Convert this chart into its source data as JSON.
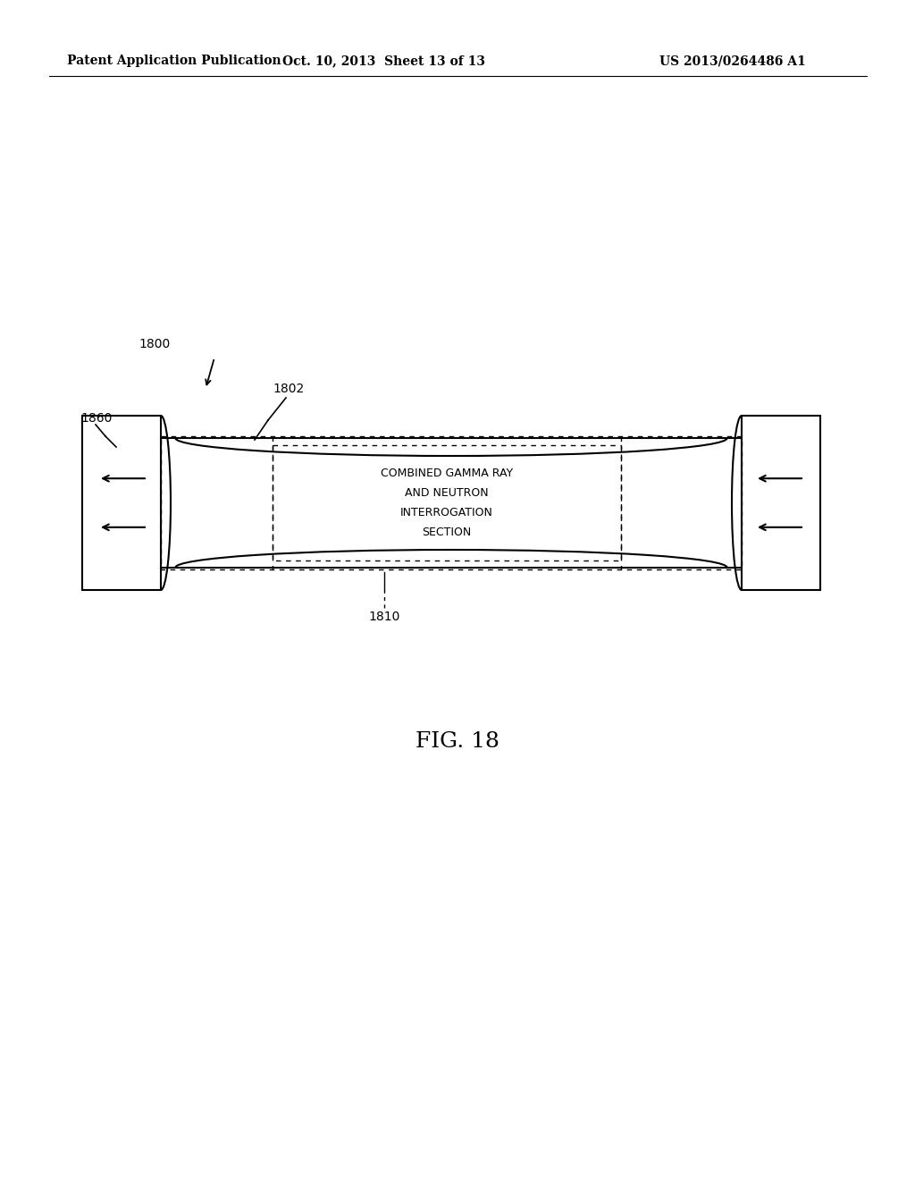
{
  "bg_color": "#ffffff",
  "header_left": "Patent Application Publication",
  "header_mid": "Oct. 10, 2013  Sheet 13 of 13",
  "header_right": "US 2013/0264486 A1",
  "fig_label": "FIG. 18",
  "label_1800": "1800",
  "label_1802": "1802",
  "label_1860": "1860",
  "label_1810": "1810",
  "center_text_lines": [
    "COMBINED GAMMA RAY",
    "AND NEUTRON",
    "INTERROGATION",
    "SECTION"
  ],
  "line_color": "#000000",
  "line_width": 1.5,
  "header_fontsize": 9,
  "label_fontsize": 10
}
